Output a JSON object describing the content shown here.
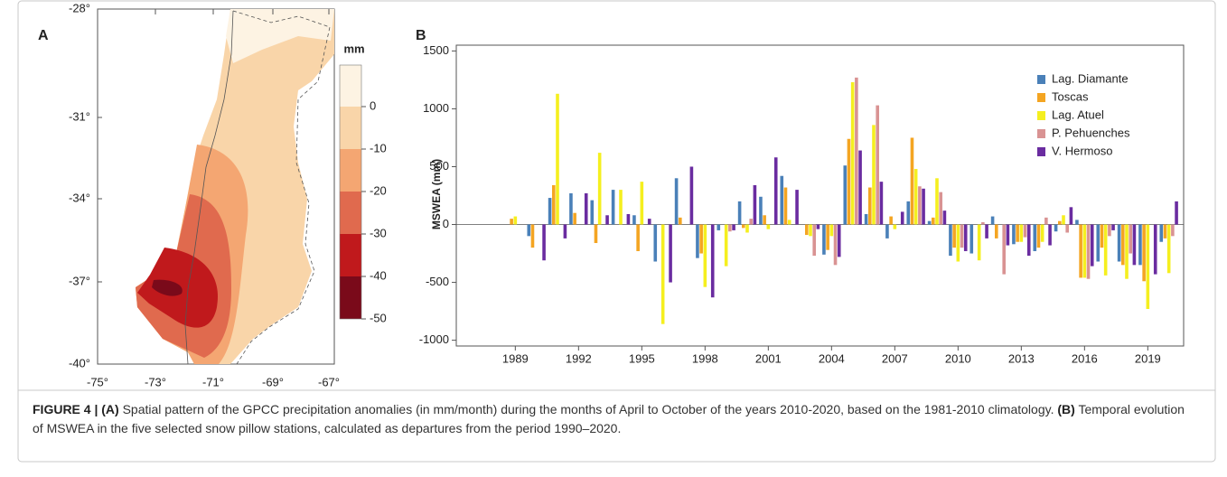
{
  "panel_a": {
    "label": "A",
    "lat_ticks": [
      "-28°",
      "-31°",
      "-34°",
      "-37°",
      "-40°"
    ],
    "lon_ticks": [
      "-75°",
      "-73°",
      "-71°",
      "-69°",
      "-67°"
    ],
    "colorbar": {
      "unit": "mm",
      "ticks": [
        0,
        -10,
        -20,
        -30,
        -40,
        -50
      ]
    }
  },
  "panel_b": {
    "label": "B"
  },
  "chart_data": {
    "type": "bar",
    "ylabel": "MSWEA (mm)",
    "x": [
      1989,
      1990,
      1991,
      1992,
      1993,
      1994,
      1995,
      1996,
      1997,
      1998,
      1999,
      2000,
      2001,
      2002,
      2003,
      2004,
      2005,
      2006,
      2007,
      2008,
      2009,
      2010,
      2011,
      2012,
      2013,
      2014,
      2015,
      2016,
      2017,
      2018,
      2019,
      2020
    ],
    "xlim": [
      1986.2,
      2020.7
    ],
    "xticks": [
      1989,
      1992,
      1995,
      1998,
      2001,
      2004,
      2007,
      2010,
      2013,
      2016,
      2019
    ],
    "ylim": [
      -1050,
      1550
    ],
    "yticks": [
      -1000,
      -500,
      0,
      500,
      1000,
      1500
    ],
    "legend": "upper right",
    "series": [
      {
        "name": "Lag. Diamante",
        "color": "#4a80b8",
        "values": [
          0,
          -100,
          230,
          270,
          210,
          300,
          80,
          -320,
          400,
          -290,
          -50,
          200,
          240,
          420,
          0,
          -260,
          510,
          90,
          -120,
          200,
          30,
          -270,
          -250,
          70,
          -170,
          -230,
          -60,
          40,
          -320,
          -320,
          -350,
          -150
        ]
      },
      {
        "name": "Toscas",
        "color": "#f4a522",
        "values": [
          50,
          -200,
          340,
          100,
          -160,
          0,
          -230,
          0,
          60,
          -250,
          0,
          -30,
          80,
          320,
          -90,
          -220,
          740,
          320,
          70,
          750,
          60,
          -200,
          0,
          -120,
          -150,
          -200,
          30,
          -460,
          -200,
          -350,
          -490,
          -120
        ]
      },
      {
        "name": "Lag. Atuel",
        "color": "#f5ef1f",
        "values": [
          70,
          0,
          1130,
          0,
          620,
          300,
          370,
          -860,
          0,
          -540,
          -360,
          -70,
          -40,
          40,
          -100,
          -100,
          1230,
          860,
          -40,
          480,
          400,
          -320,
          -310,
          0,
          -150,
          -150,
          80,
          -460,
          -440,
          -470,
          -730,
          -420
        ]
      },
      {
        "name": "P. Pehuenches",
        "color": "#d99393",
        "values": [
          0,
          0,
          0,
          0,
          0,
          0,
          0,
          0,
          0,
          0,
          -60,
          50,
          0,
          0,
          -270,
          -350,
          1270,
          1030,
          0,
          330,
          280,
          -200,
          20,
          -430,
          -110,
          60,
          -70,
          -470,
          -100,
          -250,
          0,
          -100
        ]
      },
      {
        "name": "V. Hermoso",
        "color": "#6a2ca0",
        "values": [
          0,
          -310,
          -120,
          270,
          80,
          90,
          50,
          -500,
          500,
          -630,
          -50,
          340,
          580,
          300,
          -40,
          -280,
          640,
          370,
          110,
          310,
          120,
          -230,
          -120,
          -180,
          -270,
          -180,
          150,
          -360,
          -50,
          -350,
          -430,
          200
        ]
      }
    ]
  },
  "caption": {
    "figure_label": "FIGURE 4 |",
    "a_label": "(A)",
    "a_text": "Spatial pattern of the GPCC precipitation anomalies (in mm/month) during the months of April to October of the years 2010-2020, based on the 1981-2010 climatology.",
    "b_label": "(B)",
    "b_text": "Temporal evolution of MSWEA in the five selected snow pillow stations, calculated as departures from the period 1990–2020."
  }
}
